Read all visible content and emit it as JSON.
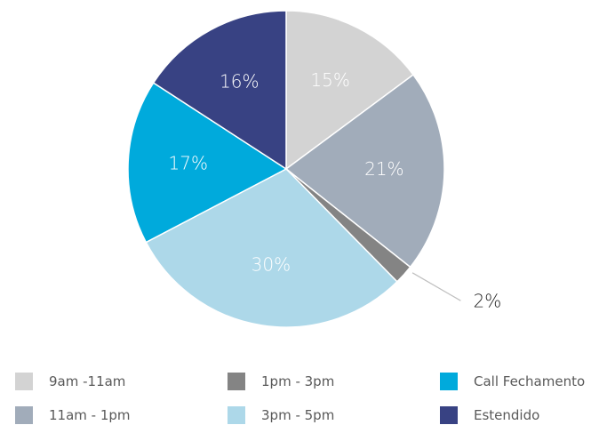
{
  "chart_data": {
    "type": "pie",
    "categories": [
      "9am -11am",
      "11am - 1pm",
      "1pm - 3pm",
      "3pm - 5pm",
      "Call Fechamento",
      "Estendido"
    ],
    "values": [
      15,
      21,
      2,
      30,
      17,
      16
    ],
    "labels": [
      "15%",
      "21%",
      "2%",
      "30%",
      "17%",
      "16%"
    ],
    "colors": [
      "#d3d3d3",
      "#a1acba",
      "#848484",
      "#add8e9",
      "#00aadc",
      "#384283"
    ],
    "label_colors": [
      "#ffffff",
      "#ffffff",
      "#222222",
      "#ffffff",
      "#ffffff",
      "#ffffff"
    ],
    "legend": [
      {
        "label": "9am -11am",
        "color": "#d3d3d3"
      },
      {
        "label": "1pm - 3pm",
        "color": "#848484"
      },
      {
        "label": "Call Fechamento",
        "color": "#00aadc"
      },
      {
        "label": "11am - 1pm",
        "color": "#a1acba"
      },
      {
        "label": "3pm - 5pm",
        "color": "#add8e9"
      },
      {
        "label": "Estendido",
        "color": "#384283"
      }
    ],
    "legend_position": "bottom",
    "start_angle": "12 o'clock",
    "direction": "clockwise"
  }
}
